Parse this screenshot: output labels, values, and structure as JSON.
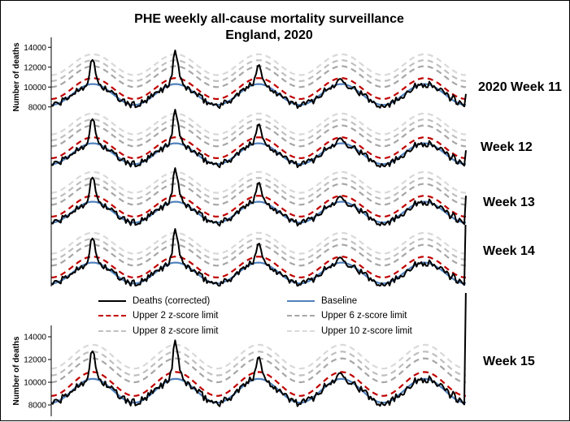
{
  "title_line1": "PHE weekly all-cause mortality surveillance",
  "title_line2": "England, 2020",
  "week_labels": [
    "2020 Week 11",
    "Week 12",
    "Week 13",
    "Week 14",
    "Week 15"
  ],
  "ylabel": "Number of deaths",
  "yticks": [
    "14000",
    "12000",
    "10000",
    "8000"
  ],
  "legend": {
    "deaths": "Deaths (corrected)",
    "baseline": "Baseline",
    "z2": "Upper 2 z-score limit",
    "z6": "Upper 6 z-score limit",
    "z8": "Upper 8 z-score limit",
    "z10": "Upper 10 z-score limit"
  },
  "colors": {
    "deaths": "#000000",
    "baseline": "#4f81bd",
    "z2": "#c00000",
    "z6": "#a6a6a6",
    "z8": "#bfbfbf",
    "z10": "#d9d9d9"
  },
  "chart_data": {
    "type": "line",
    "ylim": [
      7000,
      15000
    ],
    "x_domain": [
      0,
      5
    ],
    "panels": [
      {
        "name": "2020 Week 11",
        "final_death_value": 9300
      },
      {
        "name": "Week 12",
        "final_death_value": 9600
      },
      {
        "name": "Week 13",
        "final_death_value": 10900
      },
      {
        "name": "Week 14",
        "final_death_value": 16000
      },
      {
        "name": "Week 15",
        "final_death_value": 18500
      }
    ],
    "winter_peak_deaths": [
      12700,
      13500,
      12400,
      11000
    ],
    "baseline_peak": 10300,
    "baseline_trough": 8200,
    "z2_offset": 600,
    "z6_offset": 1800,
    "z8_offset": 2400,
    "z10_offset": 3000
  }
}
